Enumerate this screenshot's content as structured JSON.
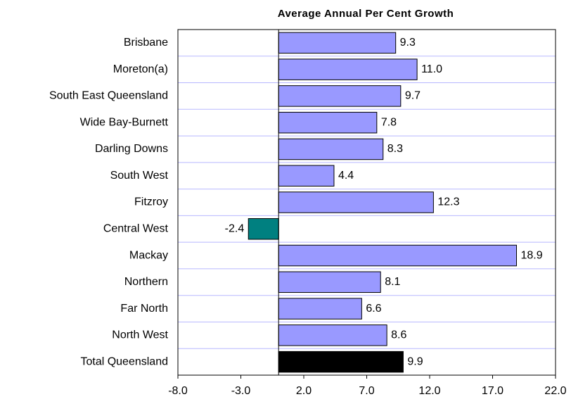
{
  "chart_data": {
    "type": "hbar",
    "title": "Average Annual Per Cent Growth",
    "categories": [
      "Brisbane",
      "Moreton(a)",
      "South East Queensland",
      "Wide Bay-Burnett",
      "Darling Downs",
      "South West",
      "Fitzroy",
      "Central West",
      "Mackay",
      "Northern",
      "Far North",
      "North West",
      "Total Queensland"
    ],
    "values": [
      9.3,
      11.0,
      9.7,
      7.8,
      8.3,
      4.4,
      12.3,
      -2.4,
      18.9,
      8.1,
      6.6,
      8.6,
      9.9
    ],
    "value_labels": [
      "9.3",
      "11.0",
      "9.7",
      "7.8",
      "8.3",
      "4.4",
      "12.3",
      "-2.4",
      "18.9",
      "8.1",
      "6.6",
      "8.6",
      "9.9"
    ],
    "colors": [
      "#9999ff",
      "#9999ff",
      "#9999ff",
      "#9999ff",
      "#9999ff",
      "#9999ff",
      "#9999ff",
      "#008080",
      "#9999ff",
      "#9999ff",
      "#9999ff",
      "#9999ff",
      "#000000"
    ],
    "xlim": [
      -8,
      22
    ],
    "xticks": [
      {
        "value": -8,
        "label": "-8.0"
      },
      {
        "value": -3,
        "label": "-3.0"
      },
      {
        "value": 2,
        "label": "2.0"
      },
      {
        "value": 7,
        "label": "7.0"
      },
      {
        "value": 12,
        "label": "12.0"
      },
      {
        "value": 17,
        "label": "17.0"
      },
      {
        "value": 22,
        "label": "22.0"
      }
    ]
  }
}
